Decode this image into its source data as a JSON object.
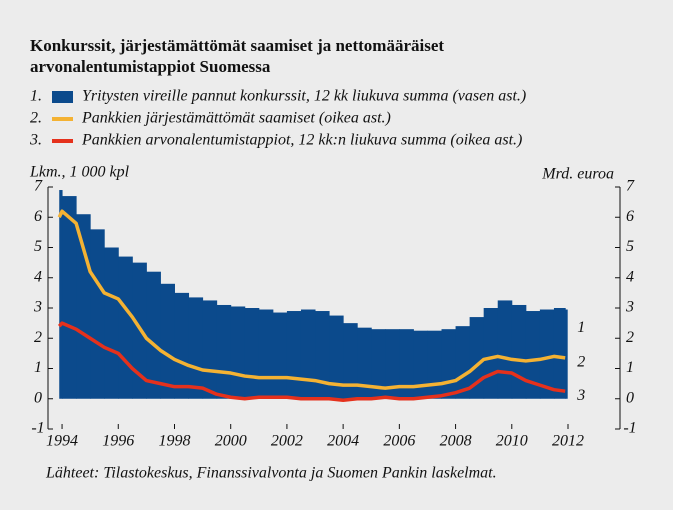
{
  "chart_data": {
    "type": "bar-line",
    "title": [
      "Konkurssit, järjestämättömät saamiset ja nettomääräiset",
      "arvonalentumistappiot Suomessa"
    ],
    "y_label": "Lkm., 1 000 kpl",
    "y2_label": "Mrd. euroa",
    "source": "Lähteet: Tilastokeskus, Finanssivalvonta ja Suomen Pankin laskelmat.",
    "x": [
      1993.9,
      1994.0,
      1994.5,
      1995.0,
      1995.5,
      1996.0,
      1996.5,
      1997.0,
      1997.5,
      1998.0,
      1998.5,
      1999.0,
      1999.5,
      2000.0,
      2000.5,
      2001.0,
      2001.5,
      2002.0,
      2002.5,
      2003.0,
      2003.5,
      2004.0,
      2004.5,
      2005.0,
      2005.5,
      2006.0,
      2006.5,
      2007.0,
      2007.5,
      2008.0,
      2008.5,
      2009.0,
      2009.5,
      2010.0,
      2010.5,
      2011.0,
      2011.5,
      2011.9
    ],
    "series": [
      {
        "name": "Yritysten vireille pannut konkurssit, 12 kk liukuva summa (vasen ast.)",
        "number": "1.",
        "end_label": "1",
        "kind": "bar",
        "color": "#0b4a8c",
        "values": [
          6.9,
          6.7,
          6.1,
          5.6,
          5.0,
          4.7,
          4.5,
          4.2,
          3.8,
          3.5,
          3.35,
          3.25,
          3.1,
          3.05,
          3.0,
          2.95,
          2.85,
          2.9,
          2.95,
          2.9,
          2.75,
          2.5,
          2.35,
          2.3,
          2.3,
          2.3,
          2.25,
          2.25,
          2.3,
          2.4,
          2.7,
          3.0,
          3.25,
          3.1,
          2.9,
          2.95,
          3.0,
          2.95
        ]
      },
      {
        "name": "Pankkien järjestämättömät saamiset (oikea ast.)",
        "number": "2.",
        "end_label": "2",
        "kind": "line",
        "axis": "y2",
        "color": "#f4b233",
        "values": [
          6.0,
          6.2,
          5.8,
          4.2,
          3.5,
          3.3,
          2.7,
          2.0,
          1.6,
          1.3,
          1.1,
          0.95,
          0.9,
          0.85,
          0.75,
          0.7,
          0.7,
          0.7,
          0.65,
          0.6,
          0.5,
          0.45,
          0.45,
          0.4,
          0.35,
          0.4,
          0.4,
          0.45,
          0.5,
          0.6,
          0.9,
          1.3,
          1.4,
          1.3,
          1.25,
          1.3,
          1.4,
          1.35
        ]
      },
      {
        "name": "Pankkien arvonalentumistappiot, 12 kk:n liukuva summa (oikea ast.)",
        "number": "3.",
        "end_label": "3",
        "kind": "line",
        "axis": "y2",
        "color": "#e5311c",
        "values": [
          2.4,
          2.5,
          2.3,
          2.0,
          1.7,
          1.5,
          1.0,
          0.6,
          0.5,
          0.4,
          0.4,
          0.35,
          0.15,
          0.05,
          0.0,
          0.05,
          0.05,
          0.05,
          0.0,
          0.0,
          0.0,
          -0.05,
          0.0,
          0.0,
          0.05,
          0.0,
          0.0,
          0.05,
          0.1,
          0.2,
          0.35,
          0.7,
          0.9,
          0.85,
          0.6,
          0.45,
          0.3,
          0.25
        ]
      }
    ],
    "xlim": [
      1993.5,
      2013.85
    ],
    "xticks": [
      1994,
      1996,
      1998,
      2000,
      2002,
      2004,
      2006,
      2008,
      2010,
      2012
    ],
    "ylim": [
      -1,
      7
    ],
    "yticks": [
      -1,
      0,
      1,
      2,
      3,
      4,
      5,
      6,
      7
    ],
    "y2lim": [
      -1,
      7
    ],
    "y2ticks": [
      -1,
      0,
      1,
      2,
      3,
      4,
      5,
      6,
      7
    ]
  }
}
